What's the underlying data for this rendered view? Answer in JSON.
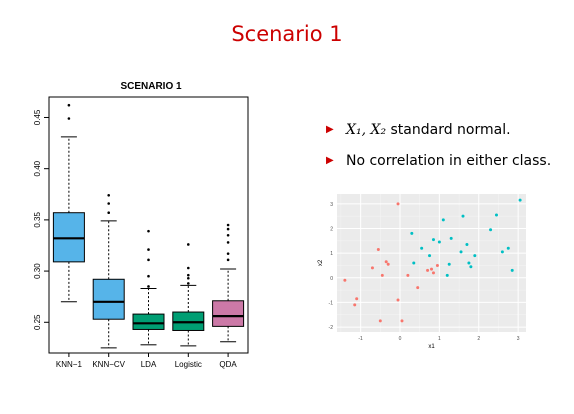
{
  "slide": {
    "title": "Scenario 1",
    "bullets": [
      {
        "math": "X₁, X₂",
        "text": " standard normal."
      },
      {
        "math": "",
        "text": "No correlation in either class."
      }
    ]
  },
  "colors": {
    "title": "#cc0000",
    "box_knn": "#56b4e9",
    "box_lda_logistic": "#009e73",
    "box_qda": "#cc79a7",
    "scatter_class_a": "#f8766d",
    "scatter_class_b": "#00bfc4",
    "scatter_panel": "#ebebeb"
  },
  "chart_data": [
    {
      "type": "boxplot",
      "title": "SCENARIO 1",
      "categories": [
        "KNN−1",
        "KNN−CV",
        "LDA",
        "Logistic",
        "QDA"
      ],
      "yticks": [
        "0.25",
        "0.30",
        "0.35",
        "0.40",
        "0.45"
      ],
      "ylim": [
        0.22,
        0.47
      ],
      "boxes": [
        {
          "name": "KNN−1",
          "whisker_low": 0.27,
          "q1": 0.309,
          "median": 0.332,
          "q3": 0.357,
          "whisker_high": 0.431,
          "outliers": [
            0.449,
            0.462
          ],
          "color": "#56b4e9"
        },
        {
          "name": "KNN−CV",
          "whisker_low": 0.225,
          "q1": 0.253,
          "median": 0.27,
          "q3": 0.292,
          "whisker_high": 0.349,
          "outliers": [
            0.357,
            0.366,
            0.374
          ],
          "color": "#56b4e9"
        },
        {
          "name": "LDA",
          "whisker_low": 0.228,
          "q1": 0.243,
          "median": 0.249,
          "q3": 0.258,
          "whisker_high": 0.283,
          "outliers": [
            0.285,
            0.295,
            0.311,
            0.321,
            0.339
          ],
          "color": "#009e73"
        },
        {
          "name": "Logistic",
          "whisker_low": 0.227,
          "q1": 0.242,
          "median": 0.25,
          "q3": 0.26,
          "whisker_high": 0.286,
          "outliers": [
            0.288,
            0.293,
            0.296,
            0.303,
            0.326
          ],
          "color": "#009e73"
        },
        {
          "name": "QDA",
          "whisker_low": 0.231,
          "q1": 0.246,
          "median": 0.256,
          "q3": 0.271,
          "whisker_high": 0.302,
          "outliers": [
            0.311,
            0.317,
            0.328,
            0.335,
            0.341,
            0.345
          ],
          "color": "#cc79a7"
        }
      ],
      "grid": false
    },
    {
      "type": "scatter",
      "xlabel": "x1",
      "ylabel": "x2",
      "xlim": [
        -1.6,
        3.2
      ],
      "ylim": [
        -2.2,
        3.4
      ],
      "xticks": [
        "-1",
        "0",
        "1",
        "2",
        "3"
      ],
      "yticks": [
        "-2",
        "-1",
        "0",
        "1",
        "2",
        "3"
      ],
      "grid": true,
      "series": [
        {
          "color": "#f8766d",
          "points": [
            [
              -1.4,
              -0.1
            ],
            [
              -1.15,
              -1.1
            ],
            [
              -1.1,
              -0.85
            ],
            [
              -0.5,
              -1.75
            ],
            [
              -0.7,
              0.4
            ],
            [
              -0.55,
              1.15
            ],
            [
              -0.35,
              0.65
            ],
            [
              -0.45,
              0.1
            ],
            [
              -0.3,
              0.55
            ],
            [
              -0.05,
              3.0
            ],
            [
              -0.05,
              -0.9
            ],
            [
              0.05,
              -1.75
            ],
            [
              0.2,
              0.1
            ],
            [
              0.45,
              -0.4
            ],
            [
              0.7,
              0.3
            ],
            [
              0.8,
              0.35
            ],
            [
              0.85,
              0.2
            ],
            [
              0.95,
              0.5
            ]
          ]
        },
        {
          "color": "#00bfc4",
          "points": [
            [
              0.3,
              1.8
            ],
            [
              0.35,
              0.6
            ],
            [
              0.55,
              1.2
            ],
            [
              0.75,
              0.9
            ],
            [
              0.85,
              1.55
            ],
            [
              1.0,
              1.45
            ],
            [
              1.1,
              2.35
            ],
            [
              1.2,
              0.1
            ],
            [
              1.25,
              0.55
            ],
            [
              1.3,
              1.6
            ],
            [
              1.55,
              1.05
            ],
            [
              1.6,
              2.5
            ],
            [
              1.7,
              1.35
            ],
            [
              1.75,
              0.6
            ],
            [
              1.8,
              0.45
            ],
            [
              1.9,
              0.9
            ],
            [
              2.3,
              1.95
            ],
            [
              2.45,
              2.55
            ],
            [
              2.6,
              1.05
            ],
            [
              2.75,
              1.2
            ],
            [
              2.85,
              0.3
            ],
            [
              3.05,
              3.15
            ]
          ]
        }
      ]
    }
  ]
}
